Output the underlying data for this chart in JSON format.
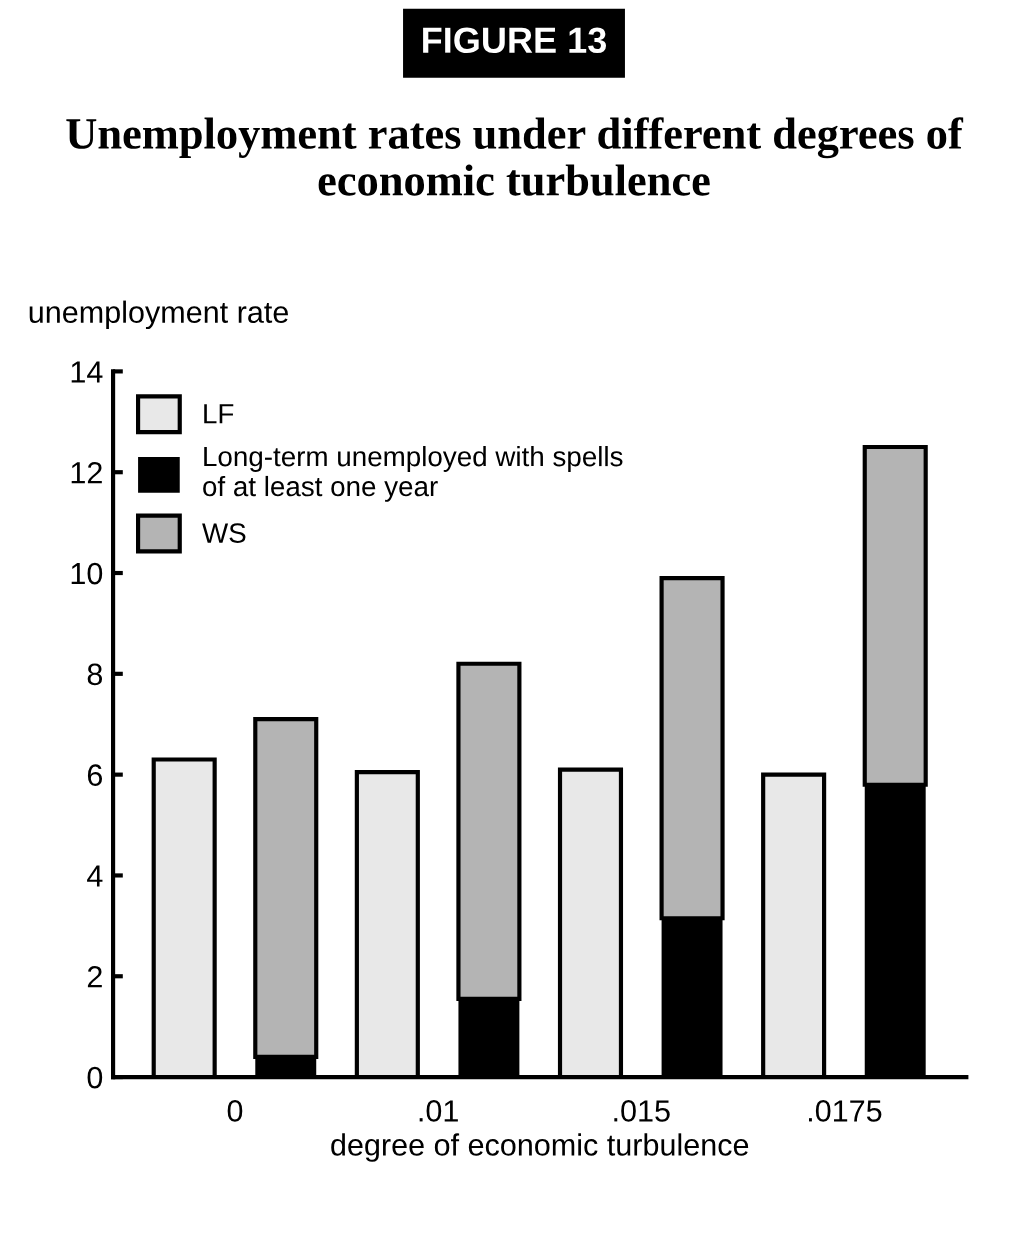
{
  "chart_data": {
    "type": "bar",
    "title": "Unemployment rates under different degrees of economic turbulence",
    "annotations": [
      "FIGURE 13"
    ],
    "xlabel": "degree of economic turbulence",
    "ylabel": "unemployment rate",
    "categories": [
      "0",
      null,
      ".01",
      null,
      ".015",
      null,
      ".0175",
      null
    ],
    "stacked": true,
    "series": [
      {
        "name": "LF",
        "color": "#e8e8e8",
        "values": [
          6.3,
          null,
          6.05,
          null,
          6.1,
          null,
          6.0,
          null
        ]
      },
      {
        "name": "Long-term unemployed with spells of at least one year",
        "color": "#000000",
        "values": [
          null,
          0.4,
          null,
          1.55,
          null,
          3.15,
          null,
          5.8
        ]
      },
      {
        "name": "WS",
        "color": "#b4b4b4",
        "values": [
          null,
          6.7,
          null,
          6.65,
          null,
          6.75,
          null,
          6.7
        ]
      }
    ],
    "ylim": [
      0,
      14
    ],
    "yticks": [
      0,
      2,
      4,
      6,
      8,
      10,
      12,
      14
    ],
    "legend": "top left",
    "grid": false
  }
}
